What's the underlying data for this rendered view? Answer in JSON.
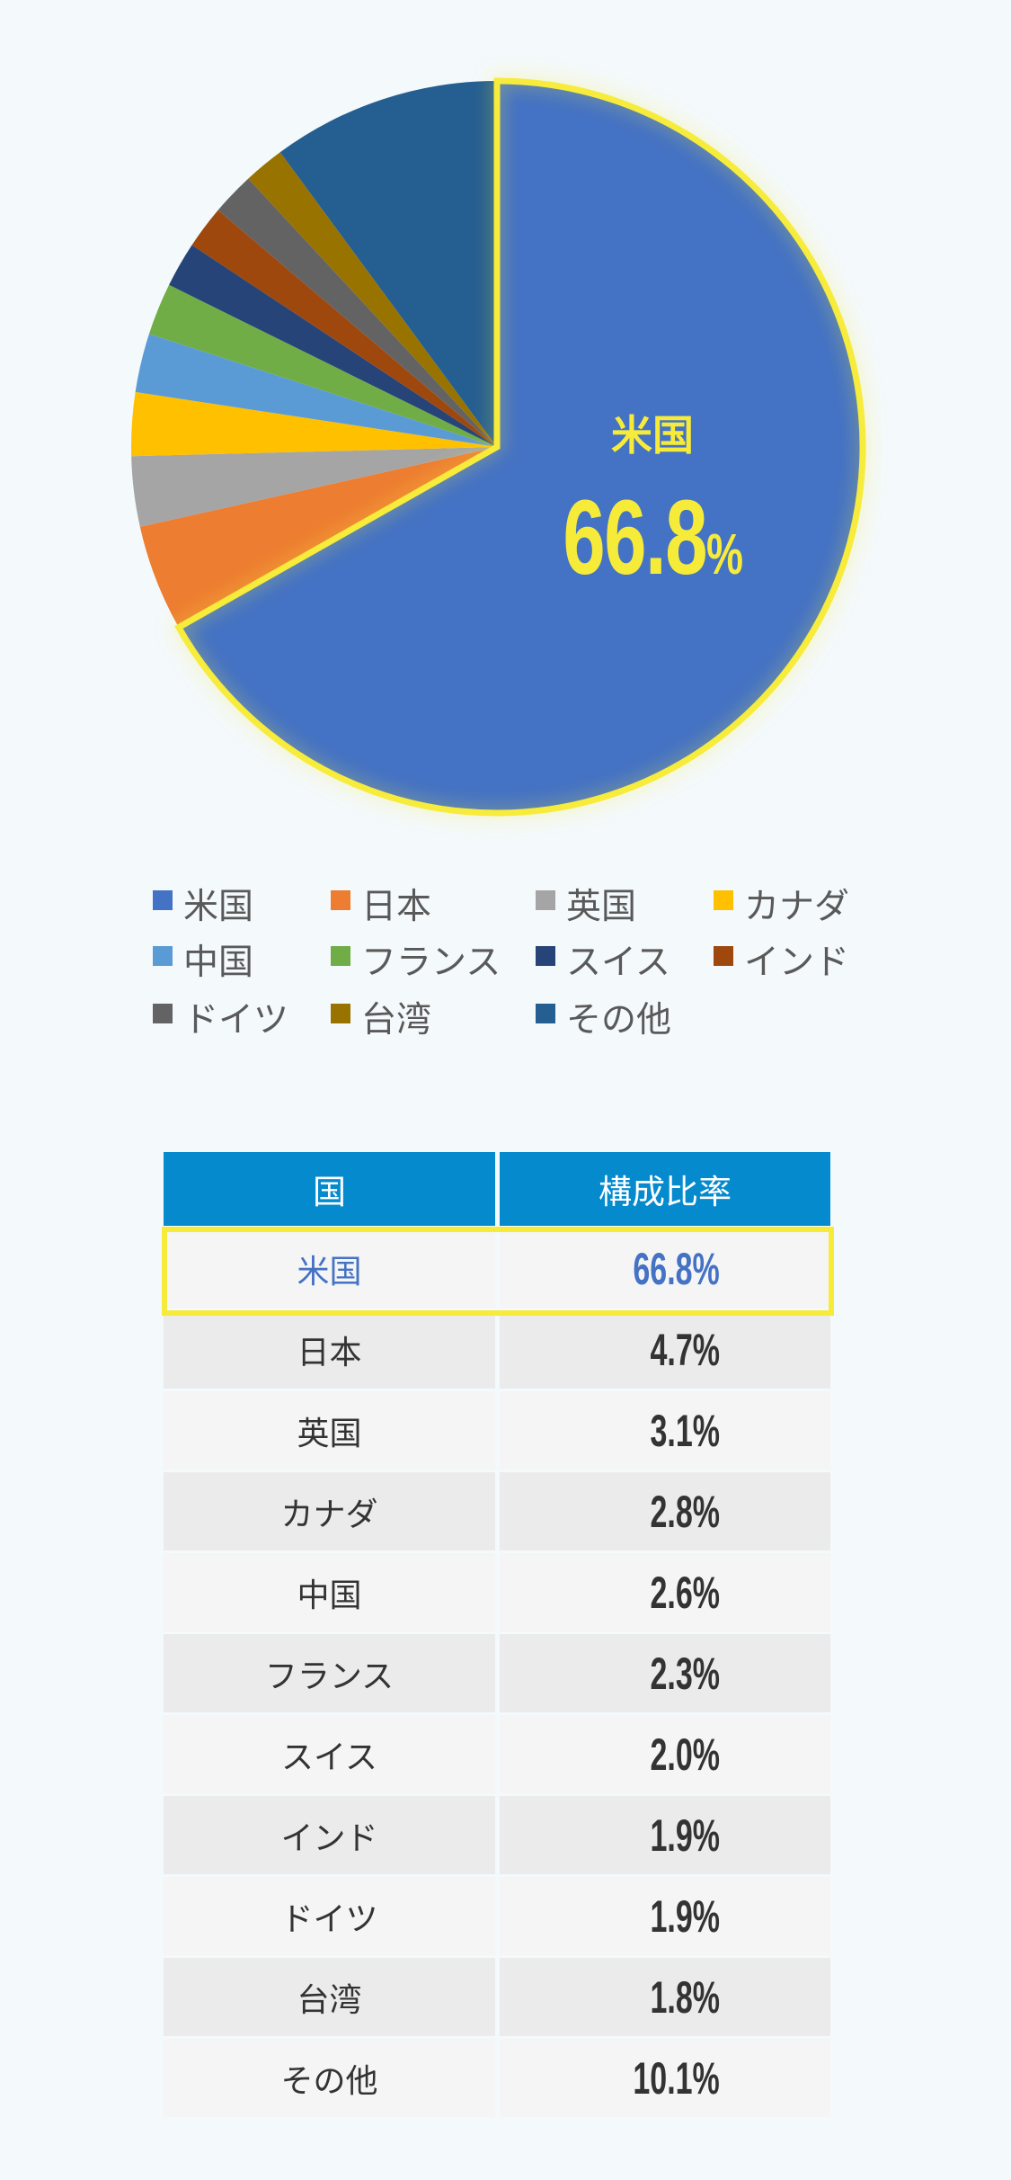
{
  "chart_data": {
    "type": "pie",
    "categories": [
      "米国",
      "日本",
      "英国",
      "カナダ",
      "中国",
      "フランス",
      "スイス",
      "インド",
      "ドイツ",
      "台湾",
      "その他"
    ],
    "values": [
      66.8,
      4.7,
      3.1,
      2.8,
      2.6,
      2.3,
      2.0,
      1.9,
      1.9,
      1.8,
      10.1
    ],
    "colors": [
      "#4472C4",
      "#ED7D31",
      "#A5A5A5",
      "#FFC000",
      "#5B9BD5",
      "#70AD47",
      "#264478",
      "#9E480E",
      "#636363",
      "#997300",
      "#255E91"
    ],
    "highlight": {
      "category": "米国",
      "label": "米国",
      "value": "66.8",
      "unit": "%",
      "color": "#F7EB3A"
    },
    "start": "top",
    "direction": "clockwise",
    "legend_position": "bottom"
  },
  "table": {
    "headers": [
      "国",
      "構成比率"
    ],
    "header_color": "#058ACE",
    "rows": [
      {
        "country": "米国",
        "value": "66.8%"
      },
      {
        "country": "日本",
        "value": "4.7%"
      },
      {
        "country": "英国",
        "value": "3.1%"
      },
      {
        "country": "カナダ",
        "value": "2.8%"
      },
      {
        "country": "中国",
        "value": "2.6%"
      },
      {
        "country": "フランス",
        "value": "2.3%"
      },
      {
        "country": "スイス",
        "value": "2.0%"
      },
      {
        "country": "インド",
        "value": "1.9%"
      },
      {
        "country": "ドイツ",
        "value": "1.9%"
      },
      {
        "country": "台湾",
        "value": "1.8%"
      },
      {
        "country": "その他",
        "value": "10.1%"
      }
    ]
  }
}
